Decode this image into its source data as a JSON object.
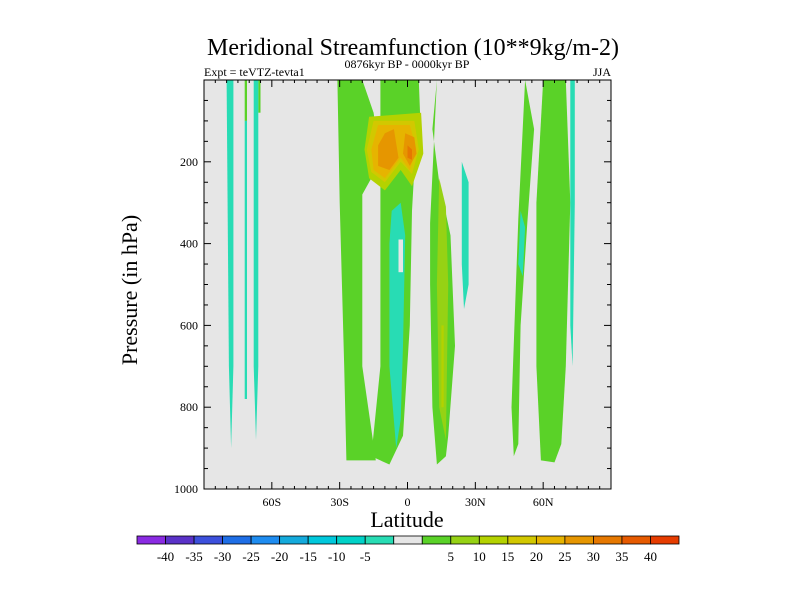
{
  "chart_data": {
    "type": "heatmap",
    "title": "Meridional Streamfunction (10**9kg/m-2)",
    "left_label": "Expt = teVTZ-tevta1",
    "center_label": "0876kyr BP - 0000kyr BP",
    "right_label": "JJA",
    "xlabel": "Latitude",
    "ylabel": "Pressure (in hPa)",
    "xlim": [
      -90,
      90
    ],
    "ylim": [
      1000,
      0
    ],
    "x_ticks": [
      {
        "value": -60,
        "label": "60S"
      },
      {
        "value": -30,
        "label": "30S"
      },
      {
        "value": 0,
        "label": "0"
      },
      {
        "value": 30,
        "label": "30N"
      },
      {
        "value": 60,
        "label": "60N"
      }
    ],
    "y_ticks": [
      {
        "value": 200,
        "label": "200"
      },
      {
        "value": 400,
        "label": "400"
      },
      {
        "value": 600,
        "label": "600"
      },
      {
        "value": 800,
        "label": "800"
      },
      {
        "value": 1000,
        "label": "1000"
      }
    ],
    "background_color": "#e6e6e6",
    "colorbar": {
      "colors": [
        "#8a2be2",
        "#5a32c8",
        "#3c50dc",
        "#1e6ee6",
        "#1e8cf0",
        "#14aadc",
        "#00c8dc",
        "#00d2c8",
        "#28dcb4",
        "#e6e6e6",
        "#5ad228",
        "#96d214",
        "#b4d200",
        "#d2c800",
        "#e6b400",
        "#e69600",
        "#e67800",
        "#e65a00",
        "#e63c00"
      ],
      "labels": [
        "-40",
        "-35",
        "-30",
        "-25",
        "-20",
        "-15",
        "-10",
        "-5",
        "5",
        "10",
        "15",
        "20",
        "25",
        "30",
        "35",
        "40"
      ]
    },
    "regions": [
      {
        "name": "green-band-30s",
        "color": "#5ad228",
        "points": [
          [
            -31,
            0
          ],
          [
            -20,
            0
          ],
          [
            -15,
            80
          ],
          [
            -12,
            200
          ],
          [
            -20,
            280
          ],
          [
            -20,
            700
          ],
          [
            -14,
            930
          ],
          [
            -27,
            930
          ],
          [
            -28,
            700
          ],
          [
            -30,
            300
          ]
        ]
      },
      {
        "name": "green-band-eq",
        "color": "#5ad228",
        "points": [
          [
            -12,
            0
          ],
          [
            5,
            0
          ],
          [
            6,
            150
          ],
          [
            3,
            220
          ],
          [
            2,
            320
          ],
          [
            1,
            600
          ],
          [
            -2,
            870
          ],
          [
            -8,
            940
          ],
          [
            -16,
            920
          ],
          [
            -12,
            700
          ],
          [
            -12,
            330
          ]
        ]
      },
      {
        "name": "green-band-20n",
        "color": "#5ad228",
        "points": [
          [
            13,
            0
          ],
          [
            11,
            120
          ],
          [
            14,
            250
          ],
          [
            19,
            380
          ],
          [
            21,
            650
          ],
          [
            18,
            870
          ],
          [
            17,
            920
          ],
          [
            13,
            940
          ],
          [
            11,
            800
          ],
          [
            10,
            500
          ],
          [
            10,
            350
          ]
        ]
      },
      {
        "name": "green-band-45n",
        "color": "#5ad228",
        "points": [
          [
            49,
            340
          ],
          [
            52,
            0
          ],
          [
            56,
            120
          ],
          [
            53,
            350
          ],
          [
            50,
            600
          ],
          [
            49,
            890
          ],
          [
            47,
            920
          ],
          [
            46,
            800
          ]
        ]
      },
      {
        "name": "green-band-60n",
        "color": "#5ad228",
        "points": [
          [
            60,
            0
          ],
          [
            70,
            0
          ],
          [
            72,
            300
          ],
          [
            70,
            700
          ],
          [
            68,
            890
          ],
          [
            65,
            935
          ],
          [
            59,
            930
          ],
          [
            57,
            700
          ],
          [
            57,
            300
          ]
        ]
      },
      {
        "name": "green-strip-70s",
        "color": "#5ad228",
        "points": [
          [
            -72,
            0
          ],
          [
            -71,
            0
          ],
          [
            -71,
            100
          ],
          [
            -72,
            100
          ]
        ]
      },
      {
        "name": "green-strip-65s",
        "color": "#5ad228",
        "points": [
          [
            -66,
            0
          ],
          [
            -65,
            0
          ],
          [
            -65,
            80
          ],
          [
            -66,
            80
          ]
        ]
      },
      {
        "name": "cyan-strip-80s",
        "color": "#28dcb4",
        "points": [
          [
            -80,
            0
          ],
          [
            -77,
            0
          ],
          [
            -77,
            700
          ],
          [
            -78,
            900
          ],
          [
            -79,
            700
          ]
        ]
      },
      {
        "name": "cyan-strip-70s",
        "color": "#28dcb4",
        "points": [
          [
            -72,
            100
          ],
          [
            -71,
            100
          ],
          [
            -71,
            780
          ],
          [
            -72,
            780
          ]
        ]
      },
      {
        "name": "cyan-strip-68s",
        "color": "#28dcb4",
        "points": [
          [
            -68,
            0
          ],
          [
            -66,
            0
          ],
          [
            -66,
            700
          ],
          [
            -67,
            880
          ],
          [
            -68,
            700
          ]
        ]
      },
      {
        "name": "cyan-blob-eq",
        "color": "#28dcb4",
        "points": [
          [
            -7,
            320
          ],
          [
            -3,
            300
          ],
          [
            -1,
            380
          ],
          [
            -2,
            650
          ],
          [
            -3,
            830
          ],
          [
            -5,
            900
          ],
          [
            -8,
            700
          ],
          [
            -8,
            400
          ]
        ]
      },
      {
        "name": "cyan-blob-25n",
        "color": "#28dcb4",
        "points": [
          [
            24,
            200
          ],
          [
            27,
            250
          ],
          [
            27,
            500
          ],
          [
            25,
            560
          ],
          [
            24,
            450
          ]
        ]
      },
      {
        "name": "cyan-strip-50n",
        "color": "#28dcb4",
        "points": [
          [
            50,
            320
          ],
          [
            52,
            360
          ],
          [
            51,
            480
          ],
          [
            49,
            450
          ]
        ]
      },
      {
        "name": "cyan-strip-75n",
        "color": "#28dcb4",
        "points": [
          [
            72,
            0
          ],
          [
            74,
            0
          ],
          [
            74,
            300
          ],
          [
            73,
            700
          ],
          [
            72,
            600
          ]
        ]
      },
      {
        "name": "white-gap-eq",
        "color": "#e6e6e6",
        "points": [
          [
            -4,
            390
          ],
          [
            -2,
            390
          ],
          [
            -2,
            470
          ],
          [
            -4,
            470
          ]
        ]
      },
      {
        "name": "white-gap-5n",
        "color": "#e6e6e6",
        "points": [
          [
            2,
            520
          ],
          [
            3,
            520
          ],
          [
            3,
            580
          ],
          [
            2,
            580
          ]
        ]
      },
      {
        "name": "olive-15n",
        "color": "#96d214",
        "points": [
          [
            14,
            240
          ],
          [
            17,
            310
          ],
          [
            18,
            500
          ],
          [
            17,
            880
          ],
          [
            14,
            800
          ],
          [
            13,
            500
          ]
        ]
      },
      {
        "name": "yellowgreen-15n",
        "color": "#b4d200",
        "points": [
          [
            15,
            600
          ],
          [
            16,
            600
          ],
          [
            16,
            800
          ],
          [
            15,
            800
          ]
        ]
      },
      {
        "name": "yellowgreen-upper",
        "color": "#b4d200",
        "points": [
          [
            -17,
            90
          ],
          [
            6,
            80
          ],
          [
            7,
            180
          ],
          [
            2,
            260
          ],
          [
            -3,
            220
          ],
          [
            -10,
            270
          ],
          [
            -17,
            240
          ],
          [
            -19,
            170
          ]
        ]
      },
      {
        "name": "yellow-upper",
        "color": "#d2c800",
        "points": [
          [
            -15,
            100
          ],
          [
            3,
            100
          ],
          [
            5,
            170
          ],
          [
            2,
            230
          ],
          [
            -3,
            200
          ],
          [
            -10,
            250
          ],
          [
            -16,
            225
          ],
          [
            -18,
            170
          ]
        ]
      },
      {
        "name": "gold-upper",
        "color": "#e6b400",
        "points": [
          [
            -13,
            110
          ],
          [
            1,
            110
          ],
          [
            4,
            170
          ],
          [
            1,
            220
          ],
          [
            -3,
            190
          ],
          [
            -10,
            240
          ],
          [
            -15,
            220
          ],
          [
            -16,
            170
          ]
        ]
      },
      {
        "name": "orange-upper",
        "color": "#e69600",
        "points": [
          [
            -10,
            130
          ],
          [
            -6,
            120
          ],
          [
            -4,
            190
          ],
          [
            -8,
            220
          ],
          [
            -13,
            210
          ],
          [
            -13,
            160
          ]
        ]
      },
      {
        "name": "orange-upper-eq",
        "color": "#e69600",
        "points": [
          [
            -1,
            130
          ],
          [
            3,
            140
          ],
          [
            4,
            180
          ],
          [
            1,
            210
          ],
          [
            -2,
            180
          ]
        ]
      },
      {
        "name": "darkorange-eq",
        "color": "#e67800",
        "points": [
          [
            0,
            160
          ],
          [
            2,
            170
          ],
          [
            2,
            195
          ],
          [
            0,
            190
          ]
        ]
      }
    ]
  }
}
